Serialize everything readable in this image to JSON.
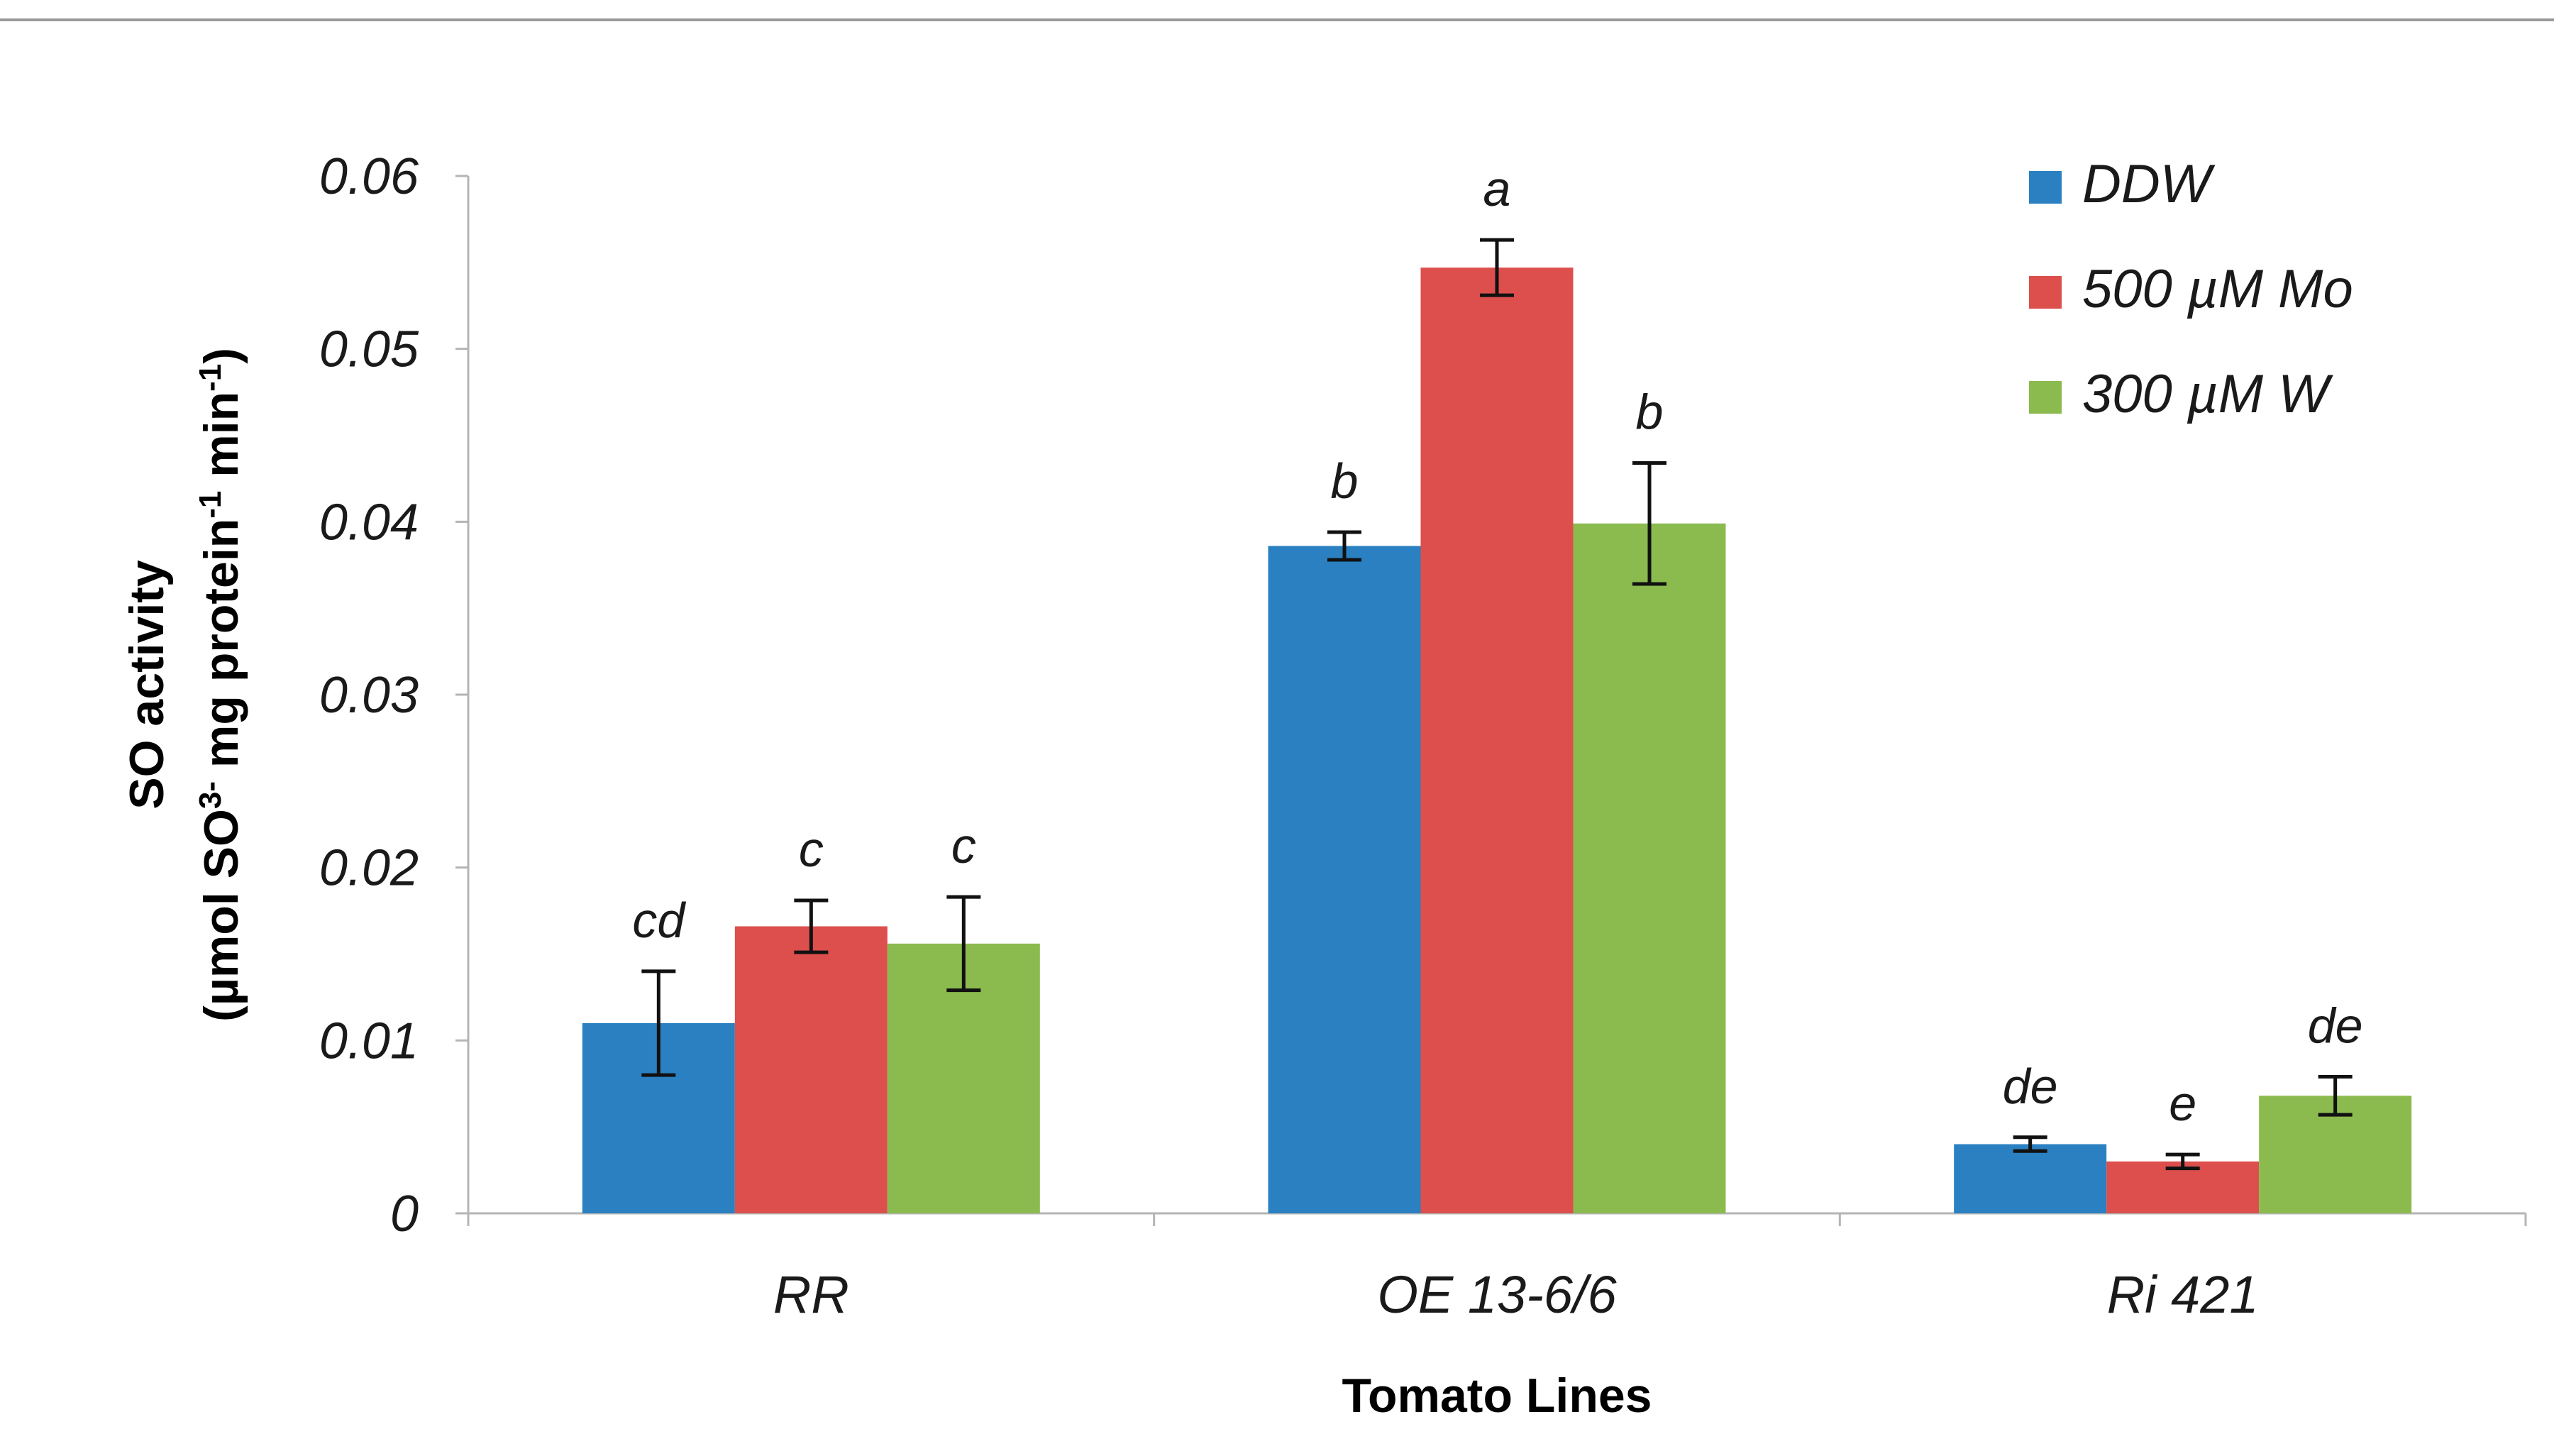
{
  "chart_data": {
    "type": "bar",
    "title": "",
    "xlabel": "Tomato Lines",
    "ylabel_line1": "SO activity",
    "ylabel_line2": {
      "prefix": "(µmol SO",
      "sup1": "3-",
      "mid": " mg protein",
      "sup2": "-1",
      "mid2": " min",
      "sup3": "-1",
      "suffix": ")"
    },
    "ylim": [
      0,
      0.06
    ],
    "yticks": [
      0,
      0.01,
      0.02,
      0.03,
      0.04,
      0.05,
      0.06
    ],
    "ytick_labels": [
      "0",
      "0.01",
      "0.02",
      "0.03",
      "0.04",
      "0.05",
      "0.06"
    ],
    "grid": false,
    "legend_position": "top-right",
    "categories": [
      "RR",
      "OE 13-6/6",
      "Ri 421"
    ],
    "series": [
      {
        "name": "DDW",
        "color": "#2a80c1",
        "values": [
          0.011,
          0.0386,
          0.004
        ],
        "errors": [
          0.003,
          0.0008,
          0.0004
        ],
        "letters": [
          "cd",
          "b",
          "de"
        ]
      },
      {
        "name": "500 µM Mo",
        "color": "#dc4f4c",
        "values": [
          0.0166,
          0.0547,
          0.003
        ],
        "errors": [
          0.0015,
          0.0016,
          0.0004
        ],
        "letters": [
          "c",
          "a",
          "e"
        ]
      },
      {
        "name": "300 µM W",
        "color": "#8bbb4e",
        "values": [
          0.0156,
          0.0399,
          0.0068
        ],
        "errors": [
          0.0027,
          0.0035,
          0.0011
        ],
        "letters": [
          "c",
          "b",
          "de"
        ]
      }
    ]
  }
}
